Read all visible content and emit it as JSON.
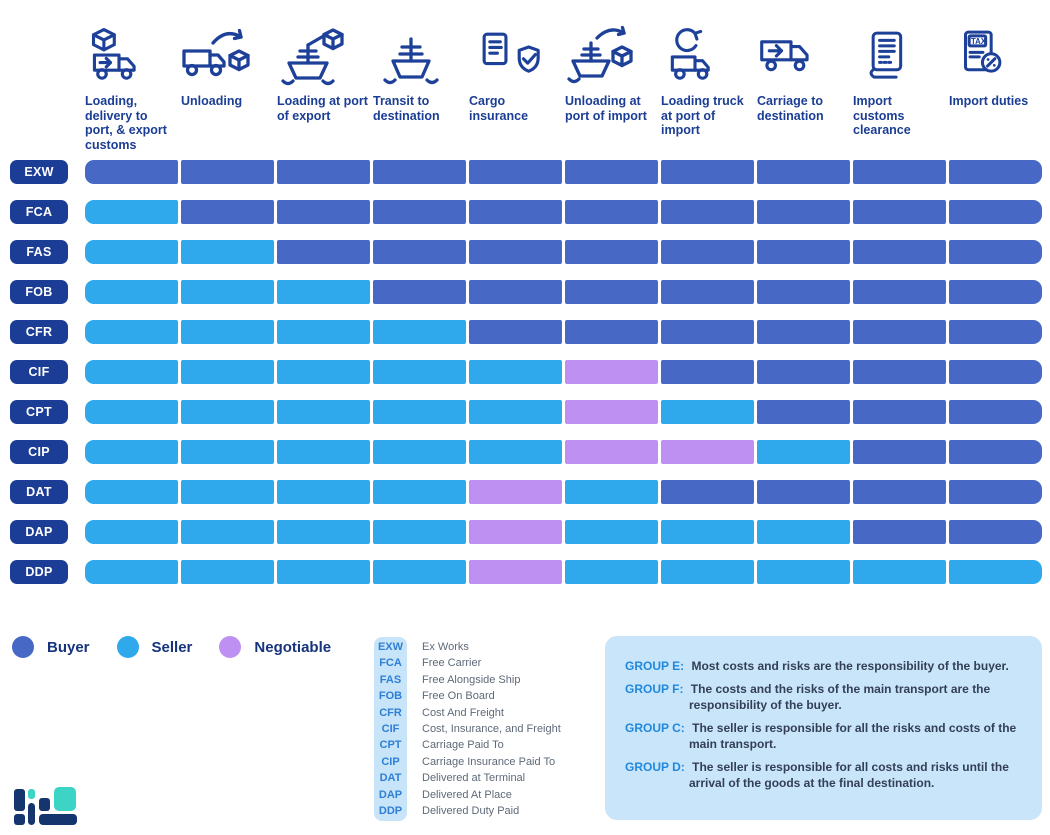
{
  "palette": {
    "buyer": "#4769C5",
    "seller": "#2FA9EC",
    "negotiable": "#BE90F1",
    "pill": "#1C3D96",
    "icon": "#1D4099",
    "headerText": "#1B3E94",
    "legendText": "#16337E",
    "abbrCode": "#2E7FD6",
    "abbrDef": "#5E6A78",
    "stripBg": "#C7E4F8",
    "groupBg": "#C9E5F9",
    "groupLabel": "#2089DD",
    "groupText": "#333F55",
    "logoNavy": "#14356E",
    "logoTeal": "#3BD4C5"
  },
  "columns": [
    {
      "label": "Loading, delivery to port, & export customs",
      "icon": "box-truck-icon"
    },
    {
      "label": "Unloading",
      "icon": "truck-unload-box-icon"
    },
    {
      "label": "Loading at port of export",
      "icon": "ship-crane-box-icon"
    },
    {
      "label": "Transit to destination",
      "icon": "ship-icon"
    },
    {
      "label": "Cargo insurance",
      "icon": "document-shield-icon"
    },
    {
      "label": "Unloading at port of import",
      "icon": "ship-unload-box-icon"
    },
    {
      "label": "Loading truck at port of import",
      "icon": "refresh-truck-icon"
    },
    {
      "label": "Carriage to destination",
      "icon": "truck-arrow-icon"
    },
    {
      "label": "Import customs clearance",
      "icon": "scroll-document-icon"
    },
    {
      "label": "Import duties",
      "icon": "tax-document-icon"
    }
  ],
  "rows": [
    {
      "code": "EXW",
      "cells": [
        "B",
        "B",
        "B",
        "B",
        "B",
        "B",
        "B",
        "B",
        "B",
        "B"
      ]
    },
    {
      "code": "FCA",
      "cells": [
        "S",
        "B",
        "B",
        "B",
        "B",
        "B",
        "B",
        "B",
        "B",
        "B"
      ]
    },
    {
      "code": "FAS",
      "cells": [
        "S",
        "S",
        "B",
        "B",
        "B",
        "B",
        "B",
        "B",
        "B",
        "B"
      ]
    },
    {
      "code": "FOB",
      "cells": [
        "S",
        "S",
        "S",
        "B",
        "B",
        "B",
        "B",
        "B",
        "B",
        "B"
      ]
    },
    {
      "code": "CFR",
      "cells": [
        "S",
        "S",
        "S",
        "S",
        "B",
        "B",
        "B",
        "B",
        "B",
        "B"
      ]
    },
    {
      "code": "CIF",
      "cells": [
        "S",
        "S",
        "S",
        "S",
        "S",
        "N",
        "B",
        "B",
        "B",
        "B"
      ]
    },
    {
      "code": "CPT",
      "cells": [
        "S",
        "S",
        "S",
        "S",
        "S",
        "N",
        "S",
        "B",
        "B",
        "B"
      ]
    },
    {
      "code": "CIP",
      "cells": [
        "S",
        "S",
        "S",
        "S",
        "S",
        "N",
        "N",
        "S",
        "B",
        "B"
      ]
    },
    {
      "code": "DAT",
      "cells": [
        "S",
        "S",
        "S",
        "S",
        "N",
        "S",
        "B",
        "B",
        "B",
        "B"
      ]
    },
    {
      "code": "DAP",
      "cells": [
        "S",
        "S",
        "S",
        "S",
        "N",
        "S",
        "S",
        "S",
        "B",
        "B"
      ]
    },
    {
      "code": "DDP",
      "cells": [
        "S",
        "S",
        "S",
        "S",
        "N",
        "S",
        "S",
        "S",
        "S",
        "S"
      ]
    }
  ],
  "legend": [
    {
      "key": "B",
      "label": "Buyer"
    },
    {
      "key": "S",
      "label": "Seller"
    },
    {
      "key": "N",
      "label": "Negotiable"
    }
  ],
  "abbreviations": [
    {
      "code": "EXW",
      "meaning": "Ex Works"
    },
    {
      "code": "FCA",
      "meaning": "Free Carrier"
    },
    {
      "code": "FAS",
      "meaning": "Free Alongside Ship"
    },
    {
      "code": "FOB",
      "meaning": "Free On Board"
    },
    {
      "code": "CFR",
      "meaning": "Cost And Freight"
    },
    {
      "code": "CIF",
      "meaning": "Cost, Insurance, and Freight"
    },
    {
      "code": "CPT",
      "meaning": "Carriage Paid To"
    },
    {
      "code": "CIP",
      "meaning": "Carriage Insurance Paid To"
    },
    {
      "code": "DAT",
      "meaning": "Delivered at Terminal"
    },
    {
      "code": "DAP",
      "meaning": "Delivered At Place"
    },
    {
      "code": "DDP",
      "meaning": "Delivered Duty Paid"
    }
  ],
  "groups": [
    {
      "label": "GROUP E:",
      "text": "Most costs and risks are the responsibility of the buyer."
    },
    {
      "label": "GROUP F:",
      "text": "The costs and the risks of the main transport are the responsibility of the buyer."
    },
    {
      "label": "GROUP C:",
      "text": "The seller is responsible for all the risks and costs of the main transport."
    },
    {
      "label": "GROUP D:",
      "text": "The seller is responsible for all costs and risks until the arrival of the goods at the final destination."
    }
  ]
}
